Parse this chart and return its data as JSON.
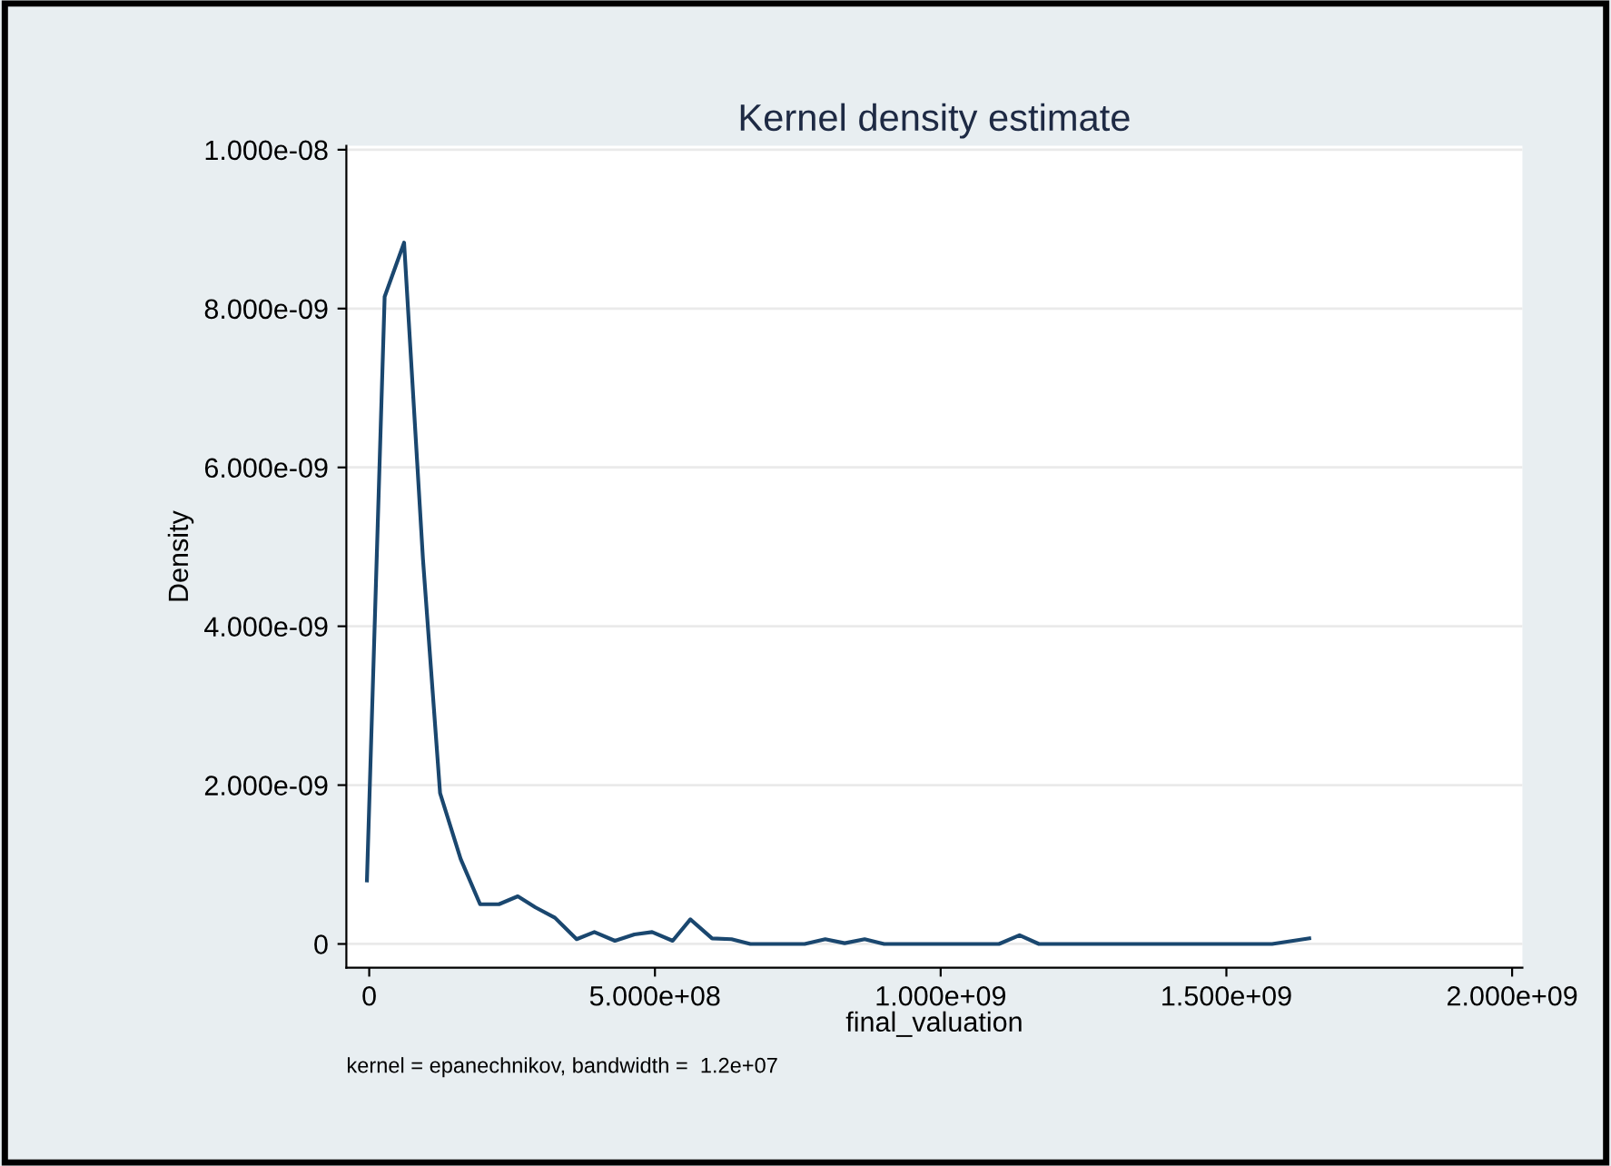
{
  "chart_data": {
    "type": "line",
    "title": "Kernel density estimate",
    "xlabel": "final_valuation",
    "ylabel": "Density",
    "annotations": [
      "kernel = epanechnikov, bandwidth =  1.2e+07"
    ],
    "series": [
      {
        "color": "#1a476f",
        "x": [
          -4000000.0,
          27000000.0,
          61000000.0,
          94000000.0,
          124000000.0,
          160000000.0,
          194000000.0,
          227000000.0,
          260000000.0,
          291000000.0,
          325000000.0,
          363000000.0,
          394000000.0,
          430000000.0,
          464000000.0,
          495000000.0,
          531000000.0,
          562000000.0,
          600000000.0,
          634000000.0,
          667000000.0,
          762000000.0,
          798000000.0,
          832000000.0,
          867000000.0,
          901000000.0,
          1102000000.0,
          1138000000.0,
          1172000000.0,
          1580000000.0,
          1645000000.0
        ],
        "values": [
          8e-10,
          8.15e-09,
          8.83e-09,
          4.85e-09,
          1.9e-09,
          1.07e-09,
          5e-10,
          5e-10,
          6e-10,
          4.6e-10,
          3.3e-10,
          6e-11,
          1.5e-10,
          4e-11,
          1.2e-10,
          1.5e-10,
          4e-11,
          3.1e-10,
          7e-11,
          6e-11,
          0,
          0,
          6e-11,
          1e-11,
          6e-11,
          0,
          0,
          1.1e-10,
          0,
          0,
          7e-11
        ]
      }
    ],
    "xlim": [
      -40000000.0,
      2018000000.0
    ],
    "ylim": [
      -3e-10,
      1.005e-08
    ],
    "xticks": [
      0,
      {
        "value": 500000000.0,
        "label": "5.000e+08"
      },
      {
        "value": 1000000000.0,
        "label": "1.000e+09"
      },
      {
        "value": 1500000000.0,
        "label": "1.500e+09"
      },
      {
        "value": 2000000000.0,
        "label": "2.000e+09"
      }
    ],
    "yticks": [
      0,
      {
        "value": 2e-09,
        "label": "2.000e-09"
      },
      {
        "value": 4e-09,
        "label": "4.000e-09"
      },
      {
        "value": 6e-09,
        "label": "6.000e-09"
      },
      {
        "value": 8e-09,
        "label": "8.000e-09"
      },
      {
        "value": 1e-08,
        "label": "1.000e-08"
      }
    ],
    "grid": "y",
    "legend": false,
    "marker": "none",
    "line_style": "solid"
  }
}
